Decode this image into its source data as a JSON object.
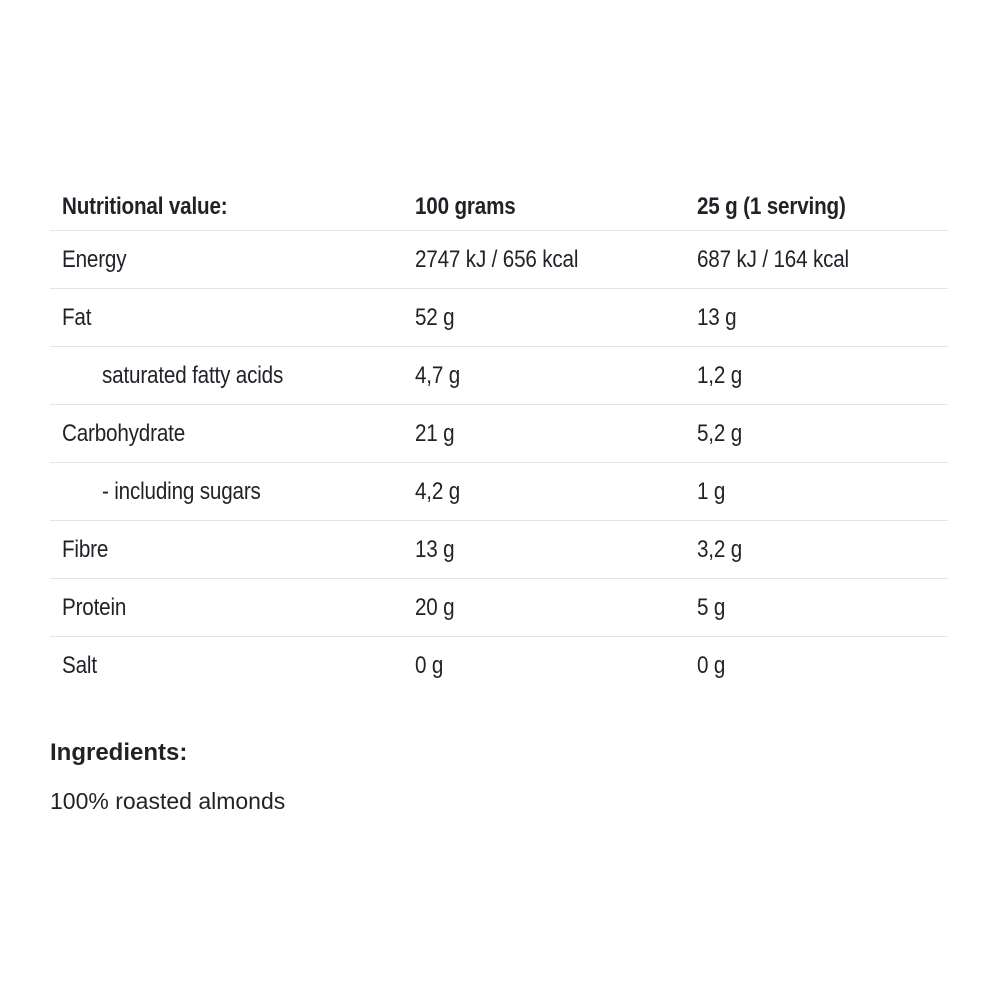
{
  "table": {
    "header": {
      "nutrient": "Nutritional value:",
      "per_100g": "100 grams",
      "per_serving": "25 g (1 serving)"
    },
    "rows": [
      {
        "label": "Energy",
        "per100": "2747 kJ / 656 kcal",
        "serving": "687 kJ / 164 kcal",
        "indent": false
      },
      {
        "label": "Fat",
        "per100": "52 g",
        "serving": "13 g",
        "indent": false
      },
      {
        "label": "saturated fatty acids",
        "per100": "4,7 g",
        "serving": "1,2 g",
        "indent": true
      },
      {
        "label": "Carbohydrate",
        "per100": "21 g",
        "serving": "5,2 g",
        "indent": false
      },
      {
        "label": "- including sugars",
        "per100": "4,2 g",
        "serving": "1 g",
        "indent": true
      },
      {
        "label": "Fibre",
        "per100": "13 g",
        "serving": "3,2 g",
        "indent": false
      },
      {
        "label": "Protein",
        "per100": "20 g",
        "serving": "5 g",
        "indent": false
      },
      {
        "label": "Salt",
        "per100": "0 g",
        "serving": "0 g",
        "indent": false
      }
    ]
  },
  "ingredients": {
    "heading": "Ingredients:",
    "text": "100% roasted almonds"
  },
  "colors": {
    "text": "#1f2227",
    "divider": "#e4e4e4",
    "background": "#ffffff"
  }
}
